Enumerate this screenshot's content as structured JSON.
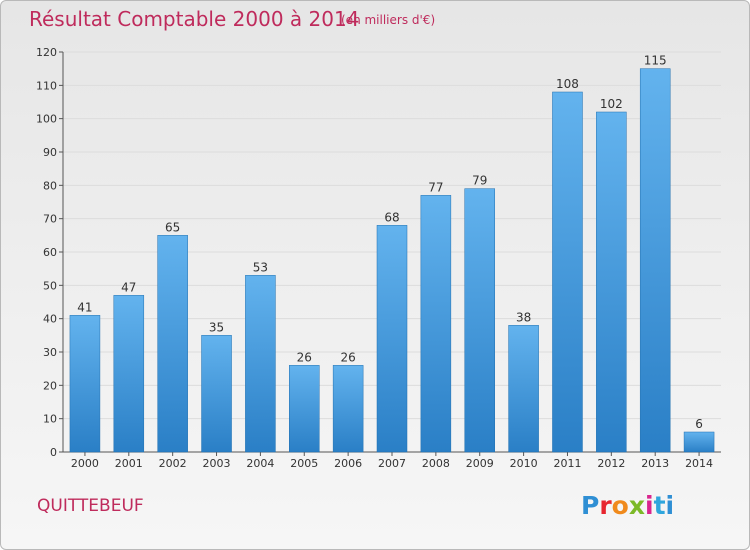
{
  "header": {
    "title": "Résultat Comptable 2000 à 2014",
    "subtitle": "(en milliers d'€)"
  },
  "footer": {
    "commune": "QUITTEBEUF",
    "logo": "Proxiti"
  },
  "colors": {
    "title": "#bf2b5c",
    "bar_light": "#63b3ee",
    "bar_dark": "#2a7fc6",
    "grid": "#dcdcdc"
  },
  "chart_data": {
    "type": "bar",
    "title": "Résultat Comptable 2000 à 2014",
    "subtitle": "(en milliers d'€)",
    "categories": [
      "2000",
      "2001",
      "2002",
      "2003",
      "2004",
      "2005",
      "2006",
      "2007",
      "2008",
      "2009",
      "2010",
      "2011",
      "2012",
      "2013",
      "2014"
    ],
    "values": [
      41,
      47,
      65,
      35,
      53,
      26,
      26,
      68,
      77,
      79,
      38,
      108,
      102,
      115,
      6
    ],
    "ylim": [
      0,
      120
    ],
    "yticks": [
      0,
      10,
      20,
      30,
      40,
      50,
      60,
      70,
      80,
      90,
      100,
      110,
      120
    ],
    "grid": true,
    "legend": "none"
  }
}
